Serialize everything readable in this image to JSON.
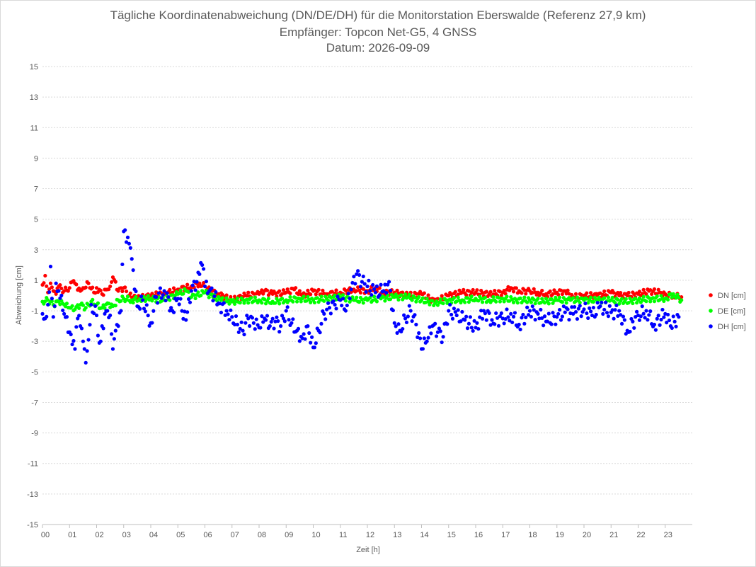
{
  "chart_data": {
    "type": "scatter",
    "title": "Tägliche Koordinatenabweichung (DN/DE/DH) für die Monitorstation Eberswalde (Referenz 27,9 km)",
    "subtitle": "Empfänger: Topcon Net-G5, 4 GNSS",
    "subtitle2": "Datum: 2026-09-09",
    "xlabel": "Zeit [h]",
    "ylabel": "Abweichung [cm]",
    "xlim": [
      0,
      24
    ],
    "ylim": [
      -15,
      15
    ],
    "x_ticks": [
      "00",
      "01",
      "02",
      "03",
      "04",
      "05",
      "06",
      "07",
      "08",
      "09",
      "10",
      "11",
      "12",
      "13",
      "14",
      "15",
      "16",
      "17",
      "18",
      "19",
      "20",
      "21",
      "22",
      "23"
    ],
    "y_ticks": [
      15,
      13,
      11,
      9,
      7,
      5,
      3,
      1,
      -1,
      -3,
      -5,
      -7,
      -9,
      -11,
      -13,
      -15
    ],
    "grid": true,
    "legend_position": "right",
    "series": [
      {
        "name": "DN [cm]",
        "color": "#ff0000",
        "points": [
          [
            0.0,
            0.7
          ],
          [
            0.1,
            1.3
          ],
          [
            0.2,
            0.2
          ],
          [
            0.3,
            0.8
          ],
          [
            0.4,
            0.3
          ],
          [
            0.5,
            0.1
          ],
          [
            0.6,
            0.6
          ],
          [
            0.8,
            0.3
          ],
          [
            1.0,
            0.5
          ],
          [
            1.1,
            0.9
          ],
          [
            1.2,
            0.8
          ],
          [
            1.4,
            0.3
          ],
          [
            1.5,
            0.5
          ],
          [
            1.7,
            0.8
          ],
          [
            1.9,
            0.2
          ],
          [
            2.0,
            0.5
          ],
          [
            2.2,
            0.1
          ],
          [
            2.4,
            0.4
          ],
          [
            2.5,
            0.6
          ],
          [
            2.6,
            1.2
          ],
          [
            2.8,
            0.3
          ],
          [
            3.0,
            0.5
          ],
          [
            3.2,
            0.0
          ],
          [
            3.5,
            -0.2
          ],
          [
            4.0,
            0.0
          ],
          [
            4.5,
            0.1
          ],
          [
            5.0,
            0.4
          ],
          [
            5.5,
            0.6
          ],
          [
            5.8,
            0.8
          ],
          [
            6.0,
            0.6
          ],
          [
            6.2,
            0.3
          ],
          [
            6.5,
            0.1
          ],
          [
            7.0,
            -0.3
          ],
          [
            7.5,
            0.0
          ],
          [
            8.0,
            0.1
          ],
          [
            8.2,
            0.3
          ],
          [
            8.5,
            0.1
          ],
          [
            9.0,
            0.2
          ],
          [
            9.3,
            0.4
          ],
          [
            9.6,
            0.0
          ],
          [
            10.0,
            0.3
          ],
          [
            10.5,
            0.1
          ],
          [
            11.0,
            0.2
          ],
          [
            11.5,
            0.4
          ],
          [
            12.0,
            0.3
          ],
          [
            12.3,
            0.5
          ],
          [
            12.6,
            0.2
          ],
          [
            13.0,
            0.2
          ],
          [
            13.5,
            0.0
          ],
          [
            14.0,
            0.1
          ],
          [
            14.5,
            -0.4
          ],
          [
            15.0,
            0.0
          ],
          [
            15.5,
            0.2
          ],
          [
            16.0,
            0.2
          ],
          [
            16.5,
            0.1
          ],
          [
            17.0,
            0.2
          ],
          [
            17.3,
            0.5
          ],
          [
            17.6,
            0.3
          ],
          [
            18.0,
            0.3
          ],
          [
            18.3,
            0.2
          ],
          [
            18.6,
            0.1
          ],
          [
            19.0,
            0.2
          ],
          [
            19.3,
            0.3
          ],
          [
            19.6,
            -0.1
          ],
          [
            20.0,
            0.0
          ],
          [
            20.5,
            0.0
          ],
          [
            21.0,
            0.2
          ],
          [
            21.3,
            0.0
          ],
          [
            21.6,
            0.0
          ],
          [
            22.0,
            0.1
          ],
          [
            22.4,
            0.3
          ],
          [
            22.8,
            0.2
          ],
          [
            23.0,
            0.1
          ],
          [
            23.3,
            0.0
          ],
          [
            23.6,
            -0.1
          ]
        ]
      },
      {
        "name": "DE [cm]",
        "color": "#00ff00",
        "points": [
          [
            0.0,
            -0.4
          ],
          [
            0.2,
            -0.3
          ],
          [
            0.4,
            -0.6
          ],
          [
            0.6,
            -0.4
          ],
          [
            0.8,
            -0.6
          ],
          [
            1.0,
            -0.8
          ],
          [
            1.2,
            -0.9
          ],
          [
            1.4,
            -0.6
          ],
          [
            1.6,
            -0.8
          ],
          [
            1.8,
            -0.4
          ],
          [
            2.0,
            -0.6
          ],
          [
            2.2,
            -0.8
          ],
          [
            2.4,
            -0.5
          ],
          [
            2.6,
            -0.7
          ],
          [
            2.8,
            -0.3
          ],
          [
            3.0,
            -0.2
          ],
          [
            3.3,
            -0.3
          ],
          [
            3.6,
            -0.2
          ],
          [
            4.0,
            -0.2
          ],
          [
            4.5,
            -0.3
          ],
          [
            5.0,
            0.1
          ],
          [
            5.3,
            0.3
          ],
          [
            5.5,
            -0.1
          ],
          [
            6.0,
            0.2
          ],
          [
            6.3,
            -0.1
          ],
          [
            6.6,
            -0.3
          ],
          [
            7.0,
            -0.4
          ],
          [
            7.5,
            -0.3
          ],
          [
            8.0,
            -0.3
          ],
          [
            8.5,
            -0.4
          ],
          [
            9.0,
            -0.3
          ],
          [
            9.5,
            -0.2
          ],
          [
            10.0,
            -0.3
          ],
          [
            10.5,
            -0.2
          ],
          [
            11.0,
            -0.1
          ],
          [
            11.5,
            -0.3
          ],
          [
            12.0,
            -0.3
          ],
          [
            12.5,
            -0.2
          ],
          [
            13.0,
            -0.1
          ],
          [
            13.5,
            -0.1
          ],
          [
            14.0,
            -0.3
          ],
          [
            14.5,
            -0.5
          ],
          [
            15.0,
            -0.3
          ],
          [
            15.5,
            -0.3
          ],
          [
            16.0,
            -0.2
          ],
          [
            16.5,
            -0.3
          ],
          [
            17.0,
            -0.2
          ],
          [
            17.5,
            -0.3
          ],
          [
            18.0,
            -0.3
          ],
          [
            18.5,
            -0.4
          ],
          [
            19.0,
            -0.3
          ],
          [
            19.5,
            -0.3
          ],
          [
            20.0,
            -0.3
          ],
          [
            20.5,
            -0.3
          ],
          [
            21.0,
            -0.3
          ],
          [
            21.5,
            -0.4
          ],
          [
            22.0,
            -0.3
          ],
          [
            22.5,
            -0.2
          ],
          [
            23.0,
            -0.2
          ],
          [
            23.3,
            0.1
          ],
          [
            23.6,
            -0.3
          ]
        ]
      },
      {
        "name": "DH [cm]",
        "color": "#0000ff",
        "points": [
          [
            0.0,
            -1.2
          ],
          [
            0.1,
            -1.5
          ],
          [
            0.2,
            -0.6
          ],
          [
            0.3,
            1.9
          ],
          [
            0.4,
            -1.4
          ],
          [
            0.5,
            0.8
          ],
          [
            0.6,
            0.3
          ],
          [
            0.8,
            -1.2
          ],
          [
            1.0,
            -2.4
          ],
          [
            1.1,
            -3.2
          ],
          [
            1.2,
            -3.5
          ],
          [
            1.3,
            -1.5
          ],
          [
            1.4,
            -2.0
          ],
          [
            1.5,
            -3.0
          ],
          [
            1.6,
            -4.4
          ],
          [
            1.7,
            -2.9
          ],
          [
            1.8,
            -0.6
          ],
          [
            2.0,
            -1.3
          ],
          [
            2.1,
            -3.1
          ],
          [
            2.2,
            -2.0
          ],
          [
            2.4,
            -1.0
          ],
          [
            2.5,
            -1.3
          ],
          [
            2.6,
            -3.5
          ],
          [
            2.7,
            -2.3
          ],
          [
            2.8,
            -2.0
          ],
          [
            2.9,
            -1.0
          ],
          [
            3.0,
            4.2
          ],
          [
            3.1,
            3.5
          ],
          [
            3.2,
            3.4
          ],
          [
            3.3,
            2.4
          ],
          [
            3.5,
            -0.7
          ],
          [
            3.7,
            -0.3
          ],
          [
            4.0,
            -1.8
          ],
          [
            4.2,
            -0.1
          ],
          [
            4.5,
            0.3
          ],
          [
            4.8,
            -1.0
          ],
          [
            5.0,
            -0.2
          ],
          [
            5.3,
            -1.6
          ],
          [
            5.5,
            0.3
          ],
          [
            5.7,
            0.9
          ],
          [
            5.8,
            1.4
          ],
          [
            5.9,
            2.0
          ],
          [
            6.0,
            0.6
          ],
          [
            6.2,
            0.4
          ],
          [
            6.5,
            -0.5
          ],
          [
            6.8,
            -1.0
          ],
          [
            7.0,
            -1.4
          ],
          [
            7.2,
            -1.9
          ],
          [
            7.4,
            -2.3
          ],
          [
            7.6,
            -1.5
          ],
          [
            7.8,
            -1.8
          ],
          [
            8.0,
            -2.1
          ],
          [
            8.2,
            -1.5
          ],
          [
            8.4,
            -2.0
          ],
          [
            8.6,
            -1.7
          ],
          [
            8.8,
            -2.0
          ],
          [
            9.0,
            -1.0
          ],
          [
            9.2,
            -1.8
          ],
          [
            9.4,
            -2.3
          ],
          [
            9.6,
            -2.8
          ],
          [
            9.8,
            -2.0
          ],
          [
            10.0,
            -3.4
          ],
          [
            10.2,
            -2.3
          ],
          [
            10.4,
            -1.2
          ],
          [
            10.6,
            -0.8
          ],
          [
            10.8,
            -0.6
          ],
          [
            11.0,
            -0.3
          ],
          [
            11.2,
            -1.0
          ],
          [
            11.4,
            0.4
          ],
          [
            11.6,
            1.4
          ],
          [
            11.8,
            0.9
          ],
          [
            12.0,
            0.6
          ],
          [
            12.3,
            0.2
          ],
          [
            12.6,
            0.3
          ],
          [
            12.8,
            0.9
          ],
          [
            13.0,
            -1.8
          ],
          [
            13.2,
            -2.3
          ],
          [
            13.4,
            -1.5
          ],
          [
            13.6,
            -1.0
          ],
          [
            13.8,
            -1.9
          ],
          [
            14.0,
            -3.5
          ],
          [
            14.1,
            -2.8
          ],
          [
            14.2,
            -3.0
          ],
          [
            14.4,
            -2.0
          ],
          [
            14.6,
            -2.4
          ],
          [
            14.8,
            -2.7
          ],
          [
            15.0,
            -1.0
          ],
          [
            15.3,
            -1.3
          ],
          [
            15.6,
            -1.6
          ],
          [
            16.0,
            -2.1
          ],
          [
            16.3,
            -1.0
          ],
          [
            16.6,
            -1.6
          ],
          [
            17.0,
            -1.5
          ],
          [
            17.3,
            -1.2
          ],
          [
            17.6,
            -1.9
          ],
          [
            18.0,
            -1.0
          ],
          [
            18.3,
            -1.2
          ],
          [
            18.6,
            -1.7
          ],
          [
            19.0,
            -1.4
          ],
          [
            19.3,
            -1.1
          ],
          [
            19.6,
            -1.2
          ],
          [
            20.0,
            -0.9
          ],
          [
            20.3,
            -1.3
          ],
          [
            20.6,
            -0.7
          ],
          [
            21.0,
            -1.1
          ],
          [
            21.3,
            -1.0
          ],
          [
            21.6,
            -2.3
          ],
          [
            22.0,
            -1.3
          ],
          [
            22.3,
            -1.0
          ],
          [
            22.6,
            -1.9
          ],
          [
            23.0,
            -1.2
          ],
          [
            23.2,
            -2.0
          ],
          [
            23.5,
            -1.4
          ]
        ]
      }
    ]
  }
}
